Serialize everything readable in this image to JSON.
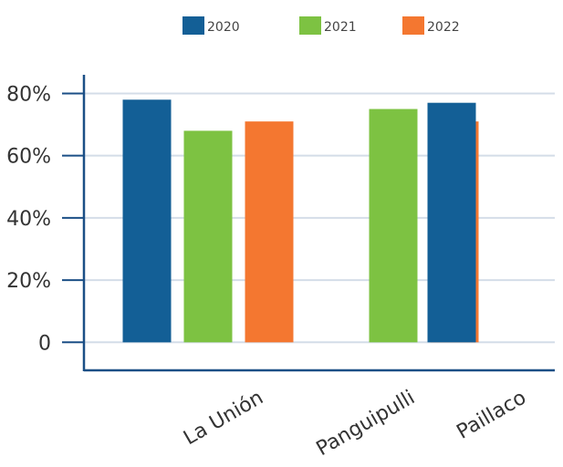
{
  "chart_data": {
    "type": "bar",
    "title": "",
    "xlabel": "",
    "ylabel": "",
    "categories": [
      "La Unión",
      "Panguipulli",
      "Paillaco"
    ],
    "series": [
      {
        "name": "2020",
        "color": "#135f96",
        "values": [
          78,
          null,
          77
        ]
      },
      {
        "name": "2021",
        "color": "#7dc242",
        "values": [
          68,
          75,
          null
        ]
      },
      {
        "name": "2022",
        "color": "#f47730",
        "values": [
          71,
          71,
          null
        ]
      }
    ],
    "y_ticks": [
      {
        "value": 0,
        "label": "0"
      },
      {
        "value": 20,
        "label": "20%"
      },
      {
        "value": 40,
        "label": "40%"
      },
      {
        "value": 60,
        "label": "60%"
      },
      {
        "value": 80,
        "label": "80%"
      }
    ],
    "ylim": [
      -9,
      86
    ],
    "grid": true,
    "legend_position": "top-center",
    "axis_color": "#1b4f86",
    "grid_color": "#d4dde8"
  }
}
